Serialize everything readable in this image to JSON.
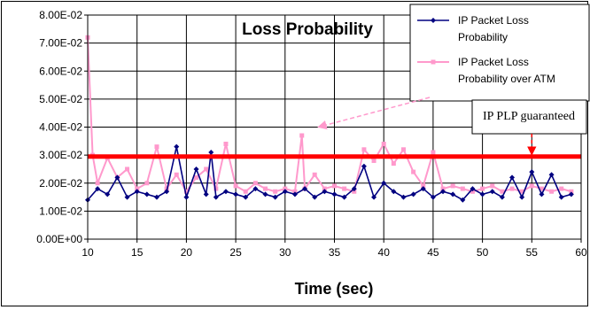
{
  "chart_data": {
    "type": "line",
    "title": "Loss Probability",
    "xlabel": "Time (sec)",
    "ylabel": "",
    "xlim": [
      10,
      60
    ],
    "ylim": [
      0,
      0.08
    ],
    "x_ticks": [
      "10",
      "15",
      "20",
      "25",
      "30",
      "35",
      "40",
      "45",
      "50",
      "55",
      "60"
    ],
    "y_ticks": [
      "0.00E+00",
      "1.00E-02",
      "2.00E-02",
      "3.00E-02",
      "4.00E-02",
      "5.00E-02",
      "6.00E-02",
      "7.00E-02",
      "8.00E-02"
    ],
    "grid": true,
    "legend_position": "top-right",
    "series": [
      {
        "name": "IP Packet Loss Probability",
        "color": "#000080",
        "marker": "diamond",
        "x": [
          10,
          11,
          12,
          13,
          14,
          15,
          16,
          17,
          18,
          19,
          20,
          21,
          22,
          22.5,
          23,
          24,
          25,
          26,
          27,
          28,
          29,
          30,
          31,
          32,
          33,
          34,
          35,
          36,
          37,
          38,
          39,
          40,
          41,
          42,
          43,
          44,
          45,
          46,
          47,
          48,
          49,
          50,
          51,
          52,
          53,
          54,
          55,
          56,
          57,
          58,
          59
        ],
        "values": [
          0.014,
          0.018,
          0.016,
          0.022,
          0.015,
          0.017,
          0.016,
          0.015,
          0.017,
          0.033,
          0.015,
          0.025,
          0.016,
          0.031,
          0.015,
          0.017,
          0.016,
          0.015,
          0.018,
          0.016,
          0.015,
          0.017,
          0.016,
          0.018,
          0.015,
          0.017,
          0.016,
          0.015,
          0.018,
          0.026,
          0.015,
          0.02,
          0.017,
          0.015,
          0.016,
          0.018,
          0.015,
          0.017,
          0.016,
          0.014,
          0.018,
          0.016,
          0.017,
          0.015,
          0.022,
          0.015,
          0.024,
          0.016,
          0.023,
          0.015,
          0.016
        ]
      },
      {
        "name": "IP Packet Loss Probability over ATM",
        "color": "#ff99cc",
        "marker": "square",
        "x": [
          10,
          10.5,
          11,
          12,
          13,
          14,
          15,
          16,
          17,
          18,
          19,
          20,
          21,
          22,
          23,
          24,
          25,
          26,
          27,
          28,
          29,
          30,
          31,
          31.7,
          32,
          33,
          34,
          35,
          36,
          37,
          38,
          39,
          40,
          41,
          42,
          43,
          44,
          45,
          46,
          47,
          48,
          49,
          50,
          51,
          52,
          53,
          54,
          55,
          56,
          57,
          58,
          59
        ],
        "values": [
          0.072,
          0.03,
          0.02,
          0.029,
          0.022,
          0.025,
          0.018,
          0.02,
          0.033,
          0.018,
          0.023,
          0.017,
          0.022,
          0.025,
          0.018,
          0.034,
          0.019,
          0.017,
          0.02,
          0.018,
          0.017,
          0.018,
          0.017,
          0.037,
          0.018,
          0.023,
          0.018,
          0.019,
          0.018,
          0.017,
          0.032,
          0.028,
          0.034,
          0.027,
          0.032,
          0.024,
          0.019,
          0.031,
          0.018,
          0.019,
          0.018,
          0.017,
          0.018,
          0.019,
          0.017,
          0.018,
          0.017,
          0.019,
          0.018,
          0.017,
          0.018,
          0.017
        ]
      },
      {
        "name": "IP PLP guaranteed",
        "color": "#ff0000",
        "x": [
          10,
          60
        ],
        "values": [
          0.0295,
          0.0295
        ]
      }
    ],
    "legend": [
      "IP Packet Loss Probability",
      "IP Packet Loss Probability over ATM"
    ],
    "annotation": {
      "text": "IP PLP guaranteed",
      "arrow_target": {
        "x": 55,
        "y": 0.0295
      }
    },
    "legend_pointer_target": {
      "x": 33,
      "y": 0.04
    }
  }
}
